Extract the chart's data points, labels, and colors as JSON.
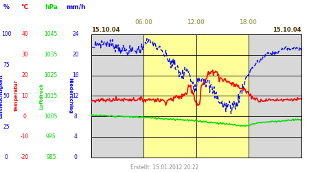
{
  "created": "Erstellt: 15.01.2012 20:22",
  "date_label_left": "15.10.04",
  "date_label_right": "15.10.04",
  "time_labels": [
    "06:00",
    "12:00",
    "18:00"
  ],
  "time_label_color": "#888833",
  "background_color": "#d8d8d8",
  "highlight_color": "#ffff99",
  "grid_color": "#000000",
  "blue_line_color": "#0000ff",
  "red_line_color": "#ff0000",
  "green_line_color": "#00dd00",
  "pct_color": "#0000ff",
  "temp_color": "#ff0000",
  "hpa_color": "#00dd00",
  "mmh_color": "#0000ff",
  "niederschlag_color": "#0000ff",
  "luftdruck_color": "#00dd00",
  "col_headers": [
    "%",
    "°C",
    "hPa",
    "mm/h"
  ],
  "pct_ticks": [
    0,
    25,
    50,
    75,
    100
  ],
  "temp_ticks": [
    -20,
    -10,
    0,
    10,
    20,
    30,
    40
  ],
  "hpa_ticks": [
    985,
    995,
    1005,
    1015,
    1025,
    1035,
    1045
  ],
  "mmh_ticks": [
    0,
    4,
    8,
    12,
    16,
    20,
    24
  ]
}
